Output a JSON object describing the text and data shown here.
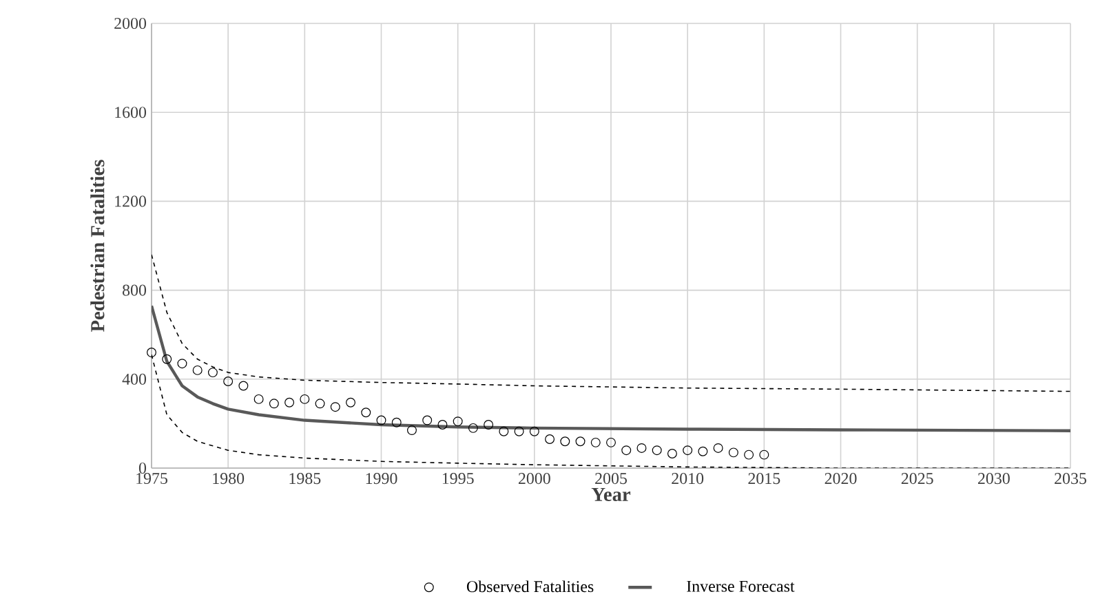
{
  "chart_data": {
    "type": "scatter",
    "xlabel": "Year",
    "ylabel": "Pedestrian Fatalities",
    "xlim": [
      1975,
      2035
    ],
    "xticks": [
      1975,
      1980,
      1985,
      1990,
      1995,
      2000,
      2005,
      2010,
      2015,
      2020,
      2025,
      2030,
      2035
    ],
    "ylim": [
      0,
      2000
    ],
    "yticks": [
      0,
      400,
      800,
      1200,
      1600,
      2000
    ],
    "grid": true,
    "legend": "bottom",
    "series": [
      {
        "name": "Observed Fatalities",
        "marker": "circle",
        "color": "#000000",
        "x": [
          1975,
          1976,
          1977,
          1978,
          1979,
          1980,
          1981,
          1982,
          1983,
          1984,
          1985,
          1986,
          1987,
          1988,
          1989,
          1990,
          1991,
          1992,
          1993,
          1994,
          1995,
          1996,
          1997,
          1998,
          1999,
          2000,
          2001,
          2002,
          2003,
          2004,
          2005,
          2006,
          2007,
          2008,
          2009,
          2010,
          2011,
          2012,
          2013,
          2014,
          2015
        ],
        "values": [
          520,
          490,
          470,
          440,
          430,
          390,
          370,
          310,
          290,
          295,
          310,
          290,
          275,
          295,
          250,
          215,
          205,
          170,
          215,
          195,
          210,
          180,
          195,
          165,
          165,
          165,
          130,
          120,
          120,
          115,
          115,
          80,
          90,
          80,
          65,
          80,
          75,
          90,
          70,
          60,
          60
        ]
      },
      {
        "name": "Inverse Forecast",
        "type": "line",
        "line_style": "solid",
        "color": "#595959",
        "x": [
          1975,
          1976,
          1977,
          1978,
          1979,
          1980,
          1982,
          1985,
          1990,
          1995,
          2000,
          2010,
          2020,
          2035
        ],
        "values": [
          730,
          480,
          370,
          320,
          290,
          265,
          240,
          215,
          195,
          185,
          180,
          175,
          172,
          168
        ]
      },
      {
        "type": "line",
        "line_style": "dashed",
        "color": "#000000",
        "x": [
          1975,
          1976,
          1977,
          1978,
          1979,
          1980,
          1982,
          1985,
          1990,
          1995,
          2000,
          2010,
          2020,
          2035
        ],
        "values": [
          960,
          700,
          560,
          490,
          455,
          430,
          410,
          395,
          385,
          378,
          370,
          360,
          355,
          345
        ]
      },
      {
        "type": "line",
        "line_style": "dashed",
        "color": "#000000",
        "x": [
          1975,
          1976,
          1977,
          1978,
          1979,
          1980,
          1982,
          1985,
          1990,
          1995,
          2000,
          2010,
          2020,
          2035
        ],
        "values": [
          510,
          240,
          160,
          120,
          100,
          80,
          60,
          45,
          30,
          22,
          15,
          5,
          0,
          0
        ]
      }
    ]
  }
}
